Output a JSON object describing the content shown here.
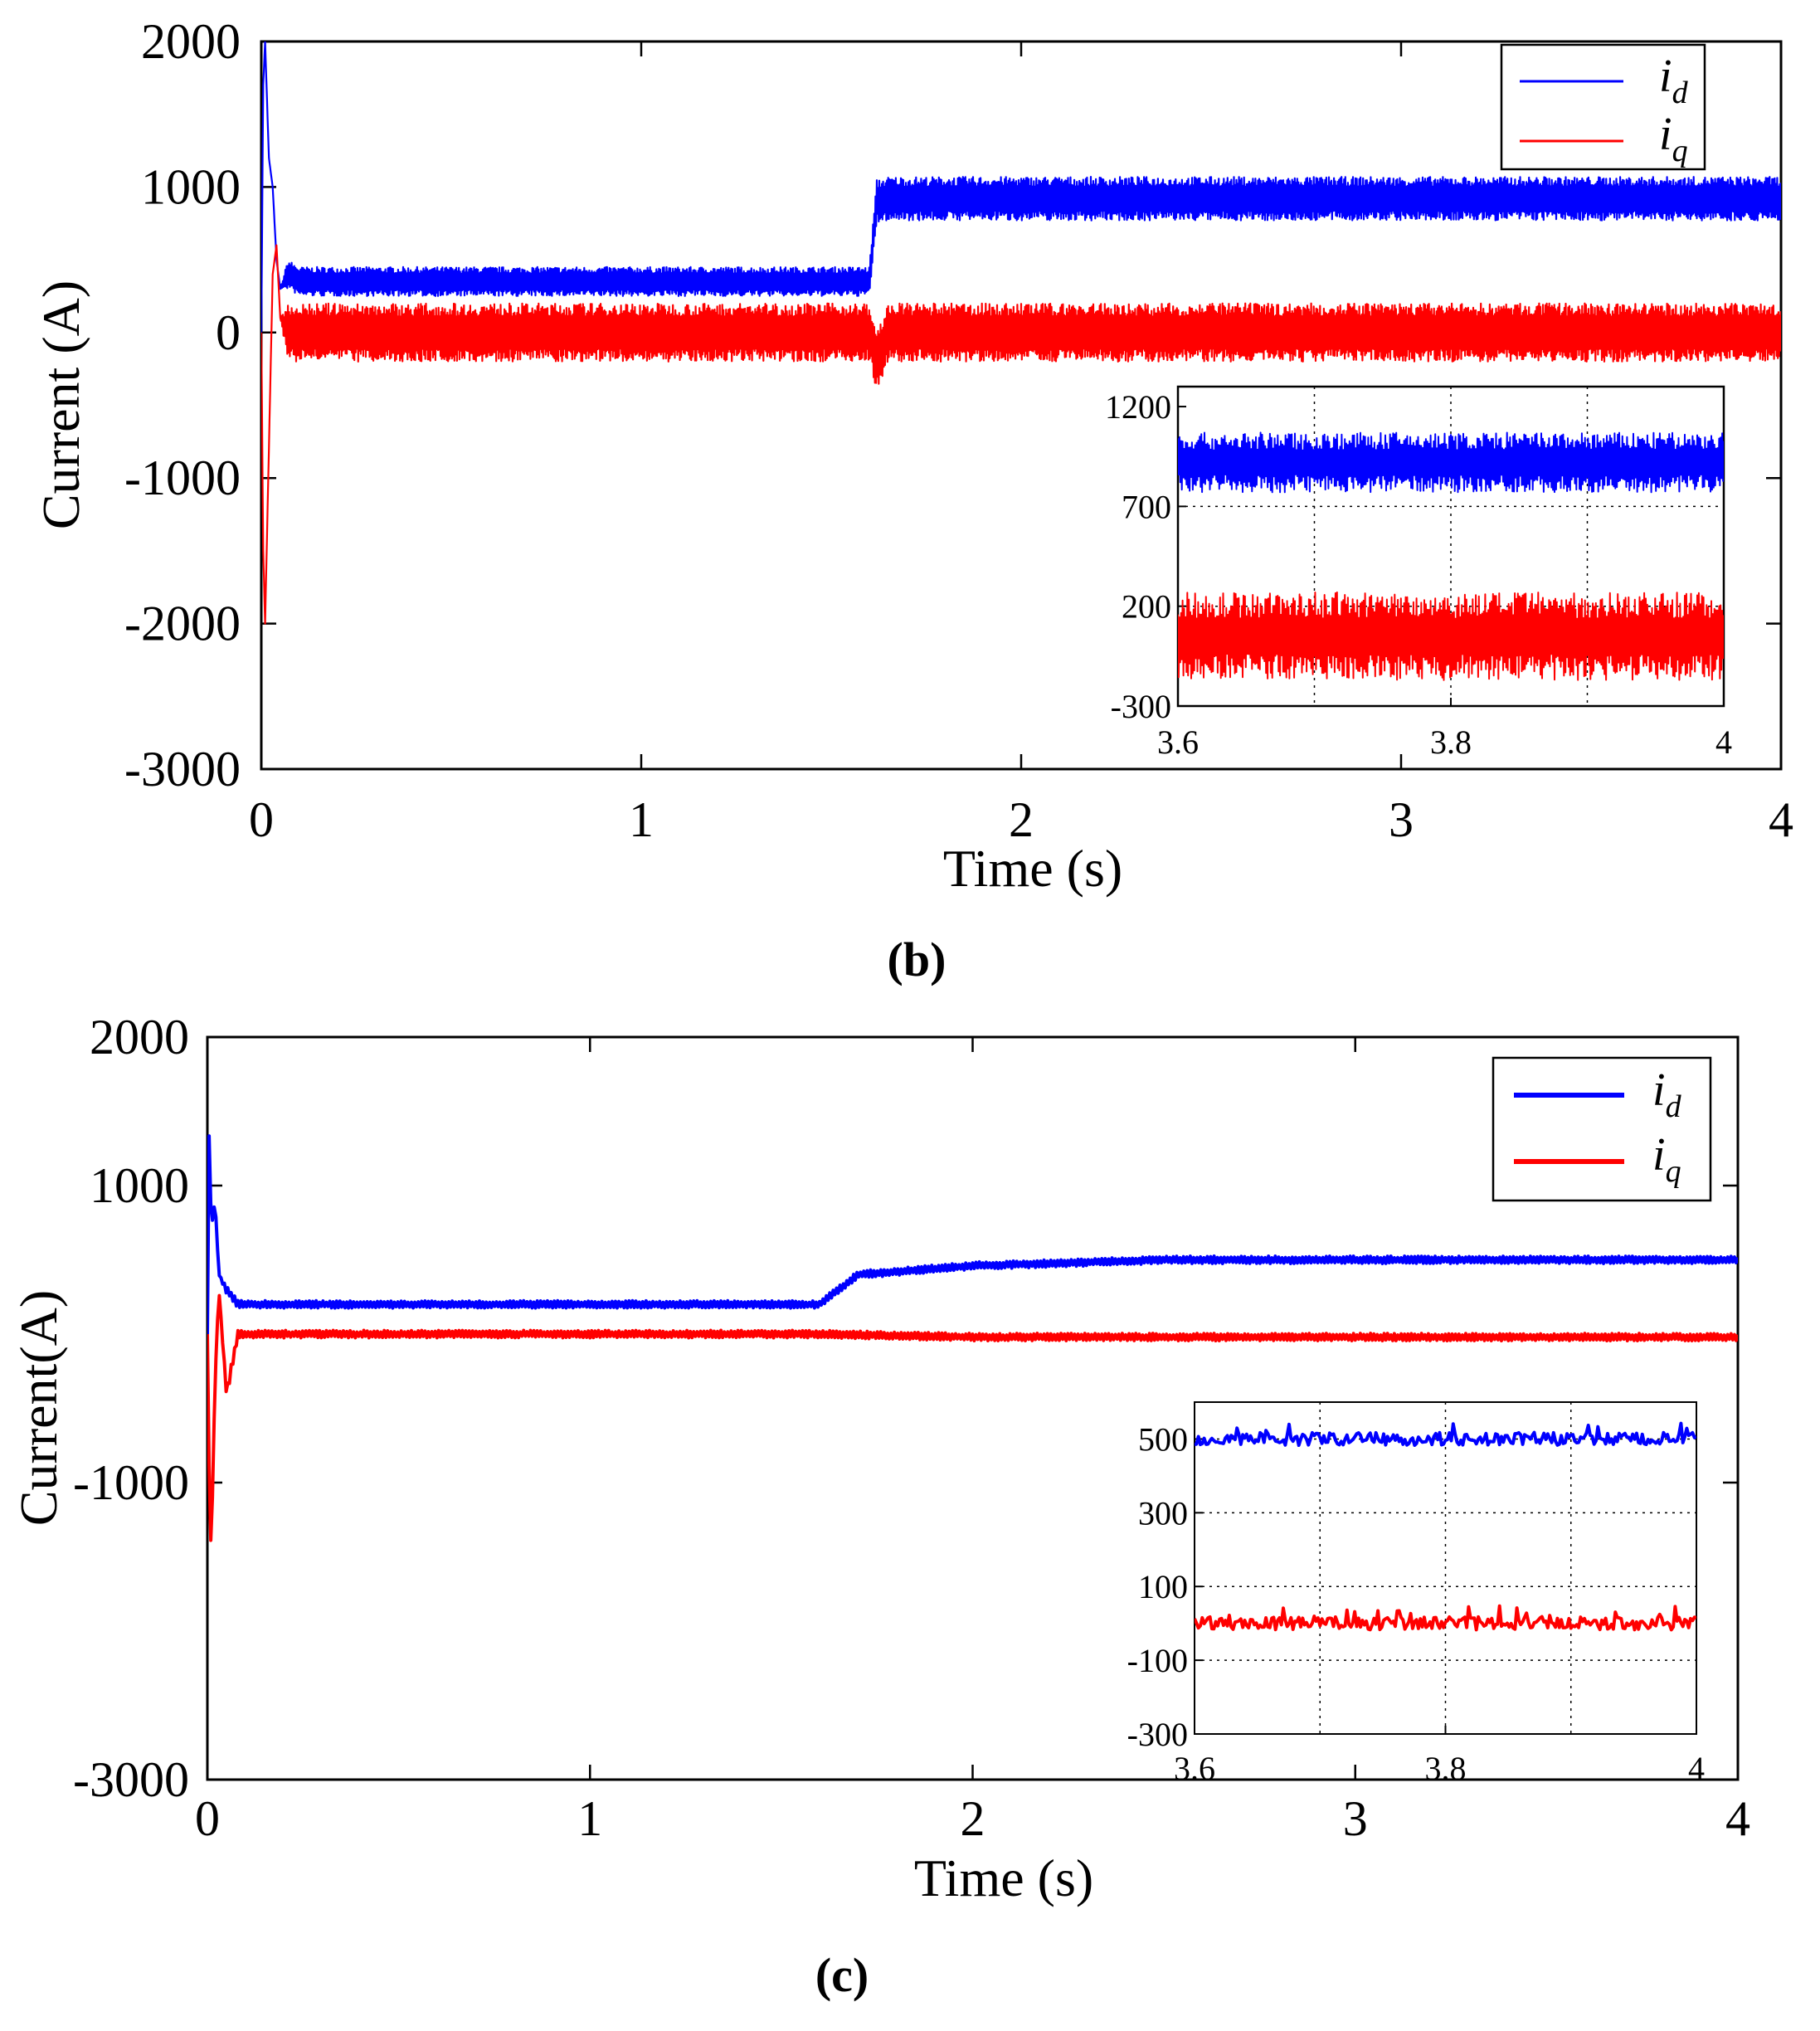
{
  "chart_data": [
    {
      "id": "b",
      "type": "line",
      "panel_label": "(b)",
      "xlabel": "Time (s)",
      "ylabel": "Current (A)",
      "xlim": [
        0,
        4
      ],
      "ylim": [
        -3000,
        2000
      ],
      "xticks": [
        "0",
        "1",
        "2",
        "3",
        "4"
      ],
      "yticks": [
        "2000",
        "1000",
        "0",
        "-1000",
        "-2000",
        "-3000"
      ],
      "legend": {
        "position": "top-right",
        "entries": [
          {
            "symbol": "i",
            "sub": "d",
            "color": "#0000ff"
          },
          {
            "symbol": "i",
            "sub": "q",
            "color": "#ff0000"
          }
        ]
      },
      "series": [
        {
          "name": "i_d",
          "color": "#0000ff",
          "x": [
            0,
            0.005,
            0.01,
            0.02,
            0.03,
            0.04,
            0.05,
            0.07,
            0.1,
            1.6,
            1.62,
            1.65,
            4.0
          ],
          "y": [
            0,
            1700,
            2000,
            1200,
            1000,
            500,
            300,
            400,
            350,
            350,
            900,
            920,
            920
          ],
          "ripple_amplitude": [
            0,
            0,
            0,
            0,
            0,
            0,
            0,
            100,
            100,
            100,
            150,
            150,
            150
          ]
        },
        {
          "name": "i_q",
          "color": "#ff0000",
          "x": [
            0,
            0.005,
            0.01,
            0.02,
            0.03,
            0.04,
            0.05,
            0.07,
            0.1,
            1.6,
            1.62,
            1.65,
            4.0
          ],
          "y": [
            0,
            -1500,
            -2000,
            -800,
            400,
            600,
            100,
            0,
            0,
            0,
            -200,
            0,
            0
          ],
          "ripple_amplitude": [
            0,
            0,
            0,
            0,
            0,
            0,
            0,
            200,
            200,
            200,
            200,
            200,
            200
          ]
        }
      ],
      "inset": {
        "xlim": [
          3.6,
          4.0
        ],
        "ylim": [
          -300,
          1300
        ],
        "xticks": [
          "3.6",
          "3.8",
          "4"
        ],
        "yticks": [
          "1200",
          "700",
          "200",
          "-300"
        ],
        "grid": true,
        "series": [
          {
            "name": "i_d",
            "color": "#0000ff",
            "mean": 920,
            "amplitude": 150
          },
          {
            "name": "i_q",
            "color": "#ff0000",
            "mean": 50,
            "amplitude": 220
          }
        ]
      }
    },
    {
      "id": "c",
      "type": "line",
      "panel_label": "(c)",
      "xlabel": "Time (s)",
      "ylabel": "Current(A)",
      "xlim": [
        0,
        4
      ],
      "ylim": [
        -3000,
        2000
      ],
      "xticks": [
        "0",
        "1",
        "2",
        "3",
        "4"
      ],
      "yticks": [
        "2000",
        "1000",
        "-1000",
        "-3000"
      ],
      "legend": {
        "position": "top-right",
        "entries": [
          {
            "symbol": "i",
            "sub": "d",
            "color": "#0000ff"
          },
          {
            "symbol": "i",
            "sub": "q",
            "color": "#ff0000"
          }
        ]
      },
      "series": [
        {
          "name": "i_d",
          "color": "#0000ff",
          "x": [
            0,
            0.005,
            0.01,
            0.02,
            0.03,
            0.05,
            0.08,
            0.1,
            1.6,
            1.7,
            2.0,
            2.5,
            3.0,
            4.0
          ],
          "y": [
            0,
            1500,
            700,
            900,
            400,
            300,
            200,
            200,
            200,
            400,
            460,
            500,
            500,
            500
          ],
          "ripple_amplitude": [
            0,
            0,
            0,
            0,
            0,
            30,
            30,
            25,
            25,
            25,
            25,
            25,
            25,
            25
          ]
        },
        {
          "name": "i_q",
          "color": "#ff0000",
          "x": [
            0,
            0.005,
            0.01,
            0.02,
            0.03,
            0.05,
            0.08,
            0.1,
            1.6,
            2.0,
            4.0
          ],
          "y": [
            0,
            -1000,
            -1500,
            -300,
            300,
            -400,
            0,
            0,
            0,
            -20,
            -20
          ],
          "ripple_amplitude": [
            0,
            0,
            0,
            0,
            0,
            40,
            30,
            25,
            25,
            25,
            25
          ]
        }
      ],
      "inset": {
        "xlim": [
          3.6,
          4.0
        ],
        "ylim": [
          -300,
          600
        ],
        "xticks": [
          "3.6",
          "3.8",
          "4"
        ],
        "yticks": [
          "500",
          "300",
          "100",
          "-100",
          "-300"
        ],
        "grid": true,
        "series": [
          {
            "name": "i_d",
            "color": "#0000ff",
            "mean": 500,
            "amplitude": 25
          },
          {
            "name": "i_q",
            "color": "#ff0000",
            "mean": 0,
            "amplitude": 25
          }
        ]
      }
    }
  ]
}
